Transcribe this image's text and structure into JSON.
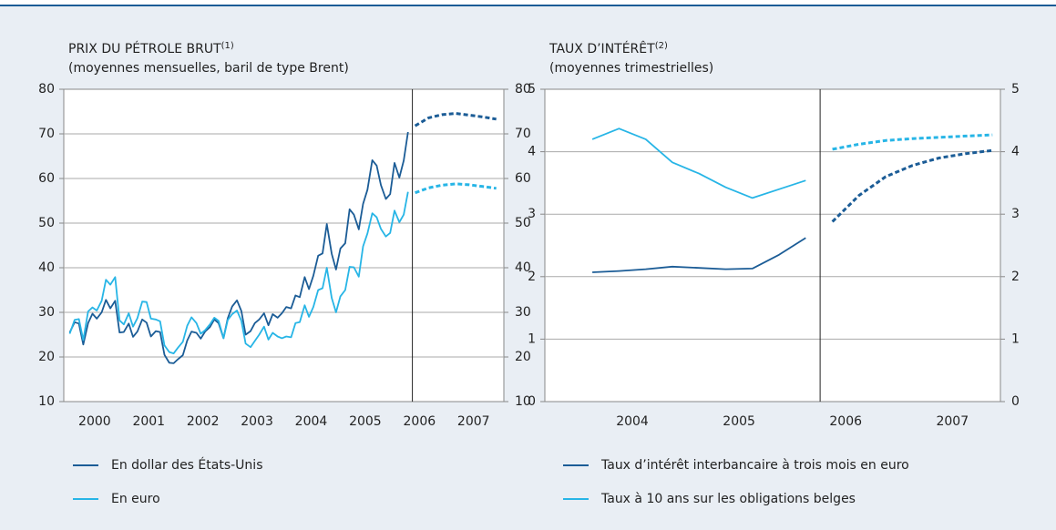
{
  "chart_data": [
    {
      "type": "line",
      "title": "PRIX DU PÉTROLE BRUT",
      "title_note": "(1)",
      "subtitle": "(moyennes mensuelles, baril de type Brent)",
      "x": [
        2000.04,
        2000.13,
        2000.21,
        2000.29,
        2000.38,
        2000.46,
        2000.54,
        2000.63,
        2000.71,
        2000.79,
        2000.88,
        2000.96,
        2001.04,
        2001.13,
        2001.21,
        2001.29,
        2001.38,
        2001.46,
        2001.54,
        2001.63,
        2001.71,
        2001.79,
        2001.88,
        2001.96,
        2002.04,
        2002.13,
        2002.21,
        2002.29,
        2002.38,
        2002.46,
        2002.54,
        2002.63,
        2002.71,
        2002.79,
        2002.88,
        2002.96,
        2003.04,
        2003.13,
        2003.21,
        2003.29,
        2003.38,
        2003.46,
        2003.54,
        2003.63,
        2003.71,
        2003.79,
        2003.88,
        2003.96,
        2004.04,
        2004.13,
        2004.21,
        2004.29,
        2004.38,
        2004.46,
        2004.54,
        2004.63,
        2004.71,
        2004.79,
        2004.88,
        2004.96,
        2005.04,
        2005.13,
        2005.21,
        2005.29,
        2005.38,
        2005.46,
        2005.54,
        2005.63,
        2005.71,
        2005.79,
        2005.88,
        2005.96,
        2006.04,
        2006.13,
        2006.21,
        2006.29
      ],
      "forecast_x": [
        2006.42,
        2006.67,
        2006.92,
        2007.17,
        2007.42,
        2007.67,
        2007.92
      ],
      "divider_x": 2006.37,
      "series": [
        {
          "name": "En dollar des États-Unis",
          "color": "#1b5c96",
          "values": [
            25.5,
            27.8,
            27.5,
            22.8,
            27.6,
            29.7,
            28.6,
            30.0,
            32.8,
            30.9,
            32.6,
            25.5,
            25.6,
            27.5,
            24.5,
            25.7,
            28.4,
            27.7,
            24.6,
            25.8,
            25.6,
            20.5,
            18.7,
            18.6,
            19.5,
            20.4,
            23.7,
            25.7,
            25.4,
            24.1,
            25.7,
            26.7,
            28.4,
            27.6,
            24.2,
            28.7,
            31.3,
            32.7,
            30.3,
            25.0,
            25.8,
            27.6,
            28.4,
            29.8,
            27.1,
            29.6,
            28.8,
            29.8,
            31.2,
            30.9,
            33.8,
            33.4,
            37.9,
            35.2,
            38.2,
            42.7,
            43.2,
            49.8,
            43.1,
            39.6,
            44.3,
            45.5,
            53.1,
            51.9,
            48.6,
            54.3,
            57.5,
            64.1,
            62.9,
            58.5,
            55.4,
            56.5,
            63.5,
            60.2,
            64.0,
            70.4
          ],
          "forecast_values": [
            71.8,
            73.6,
            74.3,
            74.6,
            74.2,
            73.8,
            73.3
          ]
        },
        {
          "name": "En euro",
          "color": "#27b5e6",
          "values": [
            25.2,
            28.3,
            28.5,
            23.8,
            30.2,
            31.1,
            30.4,
            32.6,
            37.3,
            36.2,
            37.9,
            28.2,
            27.3,
            29.8,
            26.8,
            28.7,
            32.4,
            32.3,
            28.6,
            28.4,
            28.0,
            22.6,
            21.1,
            20.8,
            22.1,
            23.4,
            27.0,
            28.9,
            27.6,
            25.2,
            26.0,
            27.3,
            28.8,
            28.1,
            24.2,
            28.3,
            29.6,
            30.4,
            28.1,
            23.0,
            22.2,
            23.6,
            25.0,
            26.8,
            23.9,
            25.4,
            24.6,
            24.2,
            24.6,
            24.4,
            27.6,
            27.8,
            31.6,
            29.0,
            31.2,
            35.0,
            35.4,
            40.0,
            33.2,
            30.0,
            33.6,
            35.0,
            40.2,
            40.1,
            38.0,
            44.8,
            47.7,
            52.2,
            51.3,
            48.7,
            47.0,
            47.8,
            52.8,
            50.2,
            51.9,
            57.0
          ],
          "forecast_values": [
            56.8,
            57.9,
            58.5,
            58.8,
            58.6,
            58.2,
            57.8
          ]
        }
      ],
      "xlim": [
        1999.93,
        2008.06
      ],
      "xticks": [
        {
          "value": 2000.5,
          "label": "2000"
        },
        {
          "value": 2001.5,
          "label": "2001"
        },
        {
          "value": 2002.5,
          "label": "2002"
        },
        {
          "value": 2003.5,
          "label": "2003"
        },
        {
          "value": 2004.5,
          "label": "2004"
        },
        {
          "value": 2005.5,
          "label": "2005"
        },
        {
          "value": 2006.5,
          "label": "2006"
        },
        {
          "value": 2007.5,
          "label": "2007"
        }
      ],
      "ylim": [
        10,
        80
      ],
      "yticks": [
        10,
        20,
        30,
        40,
        50,
        60,
        70,
        80
      ],
      "grid": true
    },
    {
      "type": "line",
      "title": "TAUX D’INTÉRÊT",
      "title_note": "(2)",
      "subtitle": "(moyennes trimestrielles)",
      "x": [
        2004.125,
        2004.375,
        2004.625,
        2004.875,
        2005.125,
        2005.375,
        2005.625,
        2005.875,
        2006.125
      ],
      "forecast_x": [
        2006.375,
        2006.625,
        2006.875,
        2007.125,
        2007.375,
        2007.625,
        2007.875
      ],
      "divider_x": 2006.26,
      "series": [
        {
          "name": "Taux d’intérêt interbancaire à trois mois en euro",
          "color": "#1b5c96",
          "values": [
            2.07,
            2.09,
            2.12,
            2.16,
            2.14,
            2.12,
            2.13,
            2.35,
            2.62
          ],
          "forecast_values": [
            2.88,
            3.3,
            3.6,
            3.78,
            3.9,
            3.97,
            4.02
          ]
        },
        {
          "name": "Taux à 10 ans sur les obligations belges",
          "color": "#27b5e6",
          "values": [
            4.2,
            4.37,
            4.2,
            3.83,
            3.65,
            3.43,
            3.26,
            3.4,
            3.54
          ],
          "forecast_values": [
            4.04,
            4.12,
            4.18,
            4.21,
            4.23,
            4.25,
            4.27
          ]
        }
      ],
      "xlim": [
        2003.68,
        2007.95
      ],
      "xticks": [
        {
          "value": 2004.5,
          "label": "2004"
        },
        {
          "value": 2005.5,
          "label": "2005"
        },
        {
          "value": 2006.5,
          "label": "2006"
        },
        {
          "value": 2007.5,
          "label": "2007"
        }
      ],
      "ylim": [
        0,
        5
      ],
      "yticks": [
        0,
        1,
        2,
        3,
        4,
        5
      ],
      "grid": true
    }
  ]
}
